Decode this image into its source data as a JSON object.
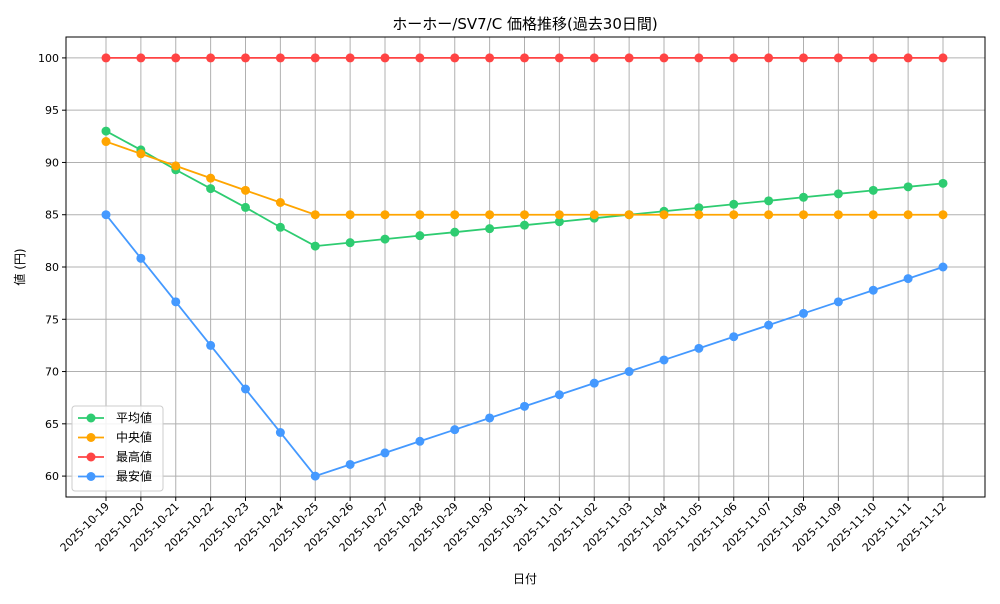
{
  "chart_data": {
    "type": "line",
    "title": "ホーホー/SV7/C 価格推移(過去30日間)",
    "xlabel": "日付",
    "ylabel": "値 (円)",
    "ylim": [
      58,
      102
    ],
    "yticks": [
      60,
      65,
      70,
      75,
      80,
      85,
      90,
      95,
      100
    ],
    "grid": true,
    "legend_position": "lower-left",
    "x": [
      "2025-10-19",
      "2025-10-20",
      "2025-10-21",
      "2025-10-22",
      "2025-10-23",
      "2025-10-24",
      "2025-10-25",
      "2025-10-26",
      "2025-10-27",
      "2025-10-28",
      "2025-10-29",
      "2025-10-30",
      "2025-10-31",
      "2025-11-01",
      "2025-11-02",
      "2025-11-03",
      "2025-11-04",
      "2025-11-05",
      "2025-11-06",
      "2025-11-07",
      "2025-11-08",
      "2025-11-09",
      "2025-11-10",
      "2025-11-11",
      "2025-11-12"
    ],
    "series": [
      {
        "name": "平均値",
        "color": "#2ecc71",
        "values": [
          93.0,
          91.2,
          89.3,
          87.5,
          85.7,
          83.8,
          82.0,
          82.33,
          82.67,
          83.0,
          83.33,
          83.67,
          84.0,
          84.33,
          84.67,
          85.0,
          85.33,
          85.67,
          86.0,
          86.33,
          86.67,
          87.0,
          87.33,
          87.67,
          88.0
        ]
      },
      {
        "name": "中央値",
        "color": "#ffa500",
        "values": [
          92.0,
          90.83,
          89.67,
          88.5,
          87.33,
          86.17,
          85,
          85,
          85,
          85,
          85,
          85,
          85,
          85,
          85,
          85,
          85,
          85,
          85,
          85,
          85,
          85,
          85,
          85,
          85
        ]
      },
      {
        "name": "最高値",
        "color": "#ff4444",
        "values": [
          100,
          100,
          100,
          100,
          100,
          100,
          100,
          100,
          100,
          100,
          100,
          100,
          100,
          100,
          100,
          100,
          100,
          100,
          100,
          100,
          100,
          100,
          100,
          100,
          100
        ]
      },
      {
        "name": "最安値",
        "color": "#4499ff",
        "values": [
          85.0,
          80.83,
          76.67,
          72.5,
          68.33,
          64.17,
          60.0,
          61.11,
          62.22,
          63.33,
          64.44,
          65.56,
          66.67,
          67.78,
          68.89,
          70.0,
          71.11,
          72.22,
          73.33,
          74.44,
          75.56,
          76.67,
          77.78,
          78.89,
          80.0
        ]
      }
    ]
  }
}
